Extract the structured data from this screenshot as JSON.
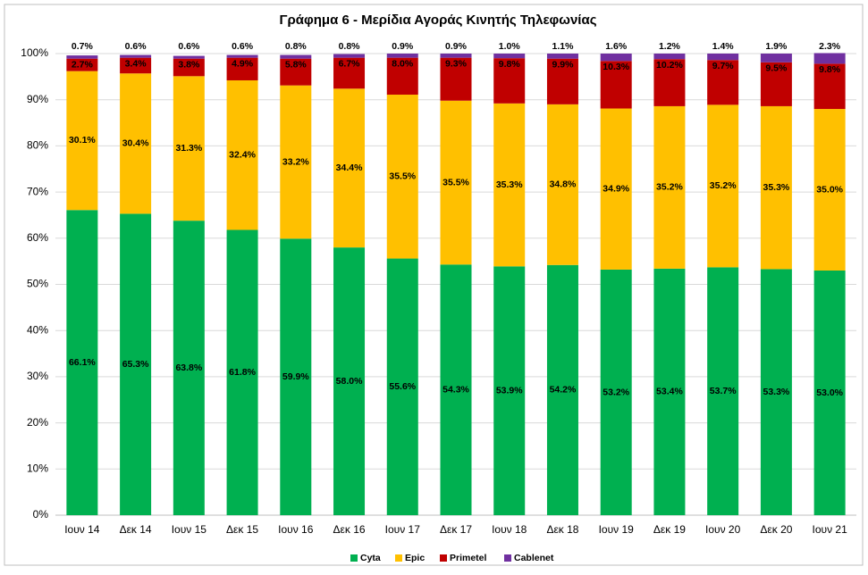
{
  "chart_data": {
    "type": "stacked_bar",
    "title": "Γράφημα 6 - Μερίδια Αγοράς Κινητής Τηλεφωνίας",
    "categories": [
      "Ιουν 14",
      "Δεκ 14",
      "Ιουν 15",
      "Δεκ 15",
      "Ιουν 16",
      "Δεκ 16",
      "Ιουν 17",
      "Δεκ 17",
      "Ιουν 18",
      "Δεκ 18",
      "Ιουν 19",
      "Δεκ 19",
      "Ιουν 20",
      "Δεκ 20",
      "Ιουν 21"
    ],
    "series": [
      {
        "name": "Cyta",
        "color": "#00b050",
        "values": [
          66.1,
          65.3,
          63.8,
          61.8,
          59.9,
          58.0,
          55.6,
          54.3,
          53.9,
          54.2,
          53.2,
          53.4,
          53.7,
          53.3,
          53.0
        ],
        "value_labels": [
          "66.1%",
          "65.3%",
          "63.8%",
          "61.8%",
          "59.9%",
          "58.0%",
          "55.6%",
          "54.3%",
          "53.9%",
          "54.2%",
          "53.2%",
          "53.4%",
          "53.7%",
          "53.3%",
          "53.0%"
        ]
      },
      {
        "name": "Epic",
        "color": "#ffc000",
        "values": [
          30.1,
          30.4,
          31.3,
          32.4,
          33.2,
          34.4,
          35.5,
          35.5,
          35.3,
          34.8,
          34.9,
          35.2,
          35.2,
          35.3,
          35.0
        ],
        "value_labels": [
          "30.1%",
          "30.4%",
          "31.3%",
          "32.4%",
          "33.2%",
          "34.4%",
          "35.5%",
          "35.5%",
          "35.3%",
          "34.8%",
          "34.9%",
          "35.2%",
          "35.2%",
          "35.3%",
          "35.0%"
        ]
      },
      {
        "name": "Primetel",
        "color": "#c00000",
        "values": [
          2.7,
          3.4,
          3.8,
          4.9,
          5.8,
          6.7,
          8.0,
          9.3,
          9.8,
          9.9,
          10.3,
          10.2,
          9.7,
          9.5,
          9.8
        ],
        "value_labels": [
          "2.7%",
          "3.4%",
          "3.8%",
          "4.9%",
          "5.8%",
          "6.7%",
          "8.0%",
          "9.3%",
          "9.8%",
          "9.9%",
          "10.3%",
          "10.2%",
          "9.7%",
          "9.5%",
          "9.8%"
        ]
      },
      {
        "name": "Cablenet",
        "color": "#7030a0",
        "values": [
          0.7,
          0.6,
          0.6,
          0.6,
          0.8,
          0.8,
          0.9,
          0.9,
          1.0,
          1.1,
          1.6,
          1.2,
          1.4,
          1.9,
          2.3
        ],
        "value_labels": [
          "0.7%",
          "0.6%",
          "0.6%",
          "0.6%",
          "0.8%",
          "0.8%",
          "0.9%",
          "0.9%",
          "1.0%",
          "1.1%",
          "1.6%",
          "1.2%",
          "1.4%",
          "1.9%",
          "2.3%"
        ]
      }
    ],
    "ylim": [
      0,
      100
    ],
    "yticks": [
      {
        "value": 0,
        "label": "0%"
      },
      {
        "value": 10,
        "label": "10%"
      },
      {
        "value": 20,
        "label": "20%"
      },
      {
        "value": 30,
        "label": "30%"
      },
      {
        "value": 40,
        "label": "40%"
      },
      {
        "value": 50,
        "label": "50%"
      },
      {
        "value": 60,
        "label": "60%"
      },
      {
        "value": 70,
        "label": "70%"
      },
      {
        "value": 80,
        "label": "80%"
      },
      {
        "value": 90,
        "label": "90%"
      },
      {
        "value": 100,
        "label": "100%"
      }
    ],
    "grid": true,
    "legend": "bottom"
  }
}
